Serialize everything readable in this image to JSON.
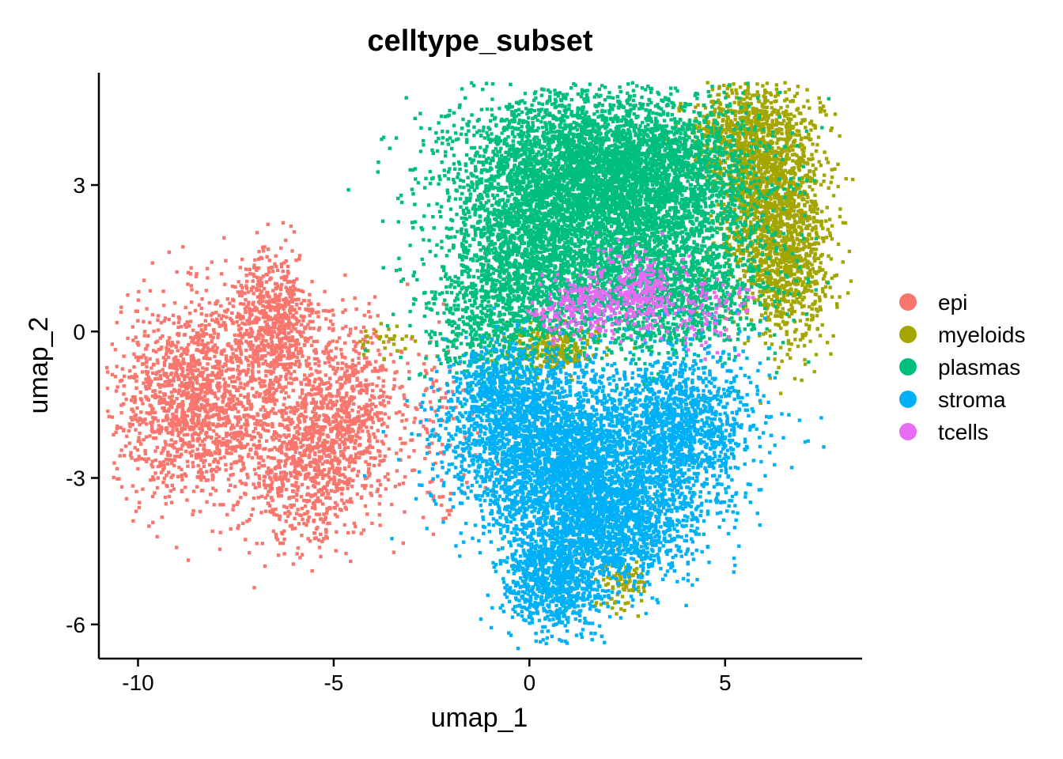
{
  "chart_data": {
    "type": "scatter",
    "title": "celltype_subset",
    "xlabel": "umap_1",
    "ylabel": "umap_2",
    "xlim": [
      -11,
      8.5
    ],
    "ylim": [
      -6.7,
      5.3
    ],
    "x_ticks": [
      -10,
      -5,
      0,
      5
    ],
    "y_ticks": [
      -6,
      -3,
      0,
      3
    ],
    "x_tick_labels": [
      "-10",
      "-5",
      "0",
      "5"
    ],
    "y_tick_labels": [
      "-6",
      "-3",
      "0",
      "3"
    ],
    "grid": false,
    "legend_position": "right",
    "series": [
      {
        "name": "epi",
        "color": "#F8766D",
        "clusters": [
          {
            "cx": -8.5,
            "cy": -1.4,
            "sx": 1.05,
            "sy": 1.0,
            "n": 1500
          },
          {
            "cx": -6.6,
            "cy": 0.1,
            "sx": 0.6,
            "sy": 0.75,
            "n": 700
          },
          {
            "cx": -5.7,
            "cy": -2.6,
            "sx": 0.8,
            "sy": 0.9,
            "n": 900
          },
          {
            "cx": -4.6,
            "cy": -1.4,
            "sx": 0.6,
            "sy": 0.8,
            "n": 500
          },
          {
            "cx": -2.6,
            "cy": -1.8,
            "sx": 0.7,
            "sy": 1.0,
            "n": 140
          }
        ]
      },
      {
        "name": "myeloids",
        "color": "#A3A500",
        "clusters": [
          {
            "cx": 6.1,
            "cy": 3.0,
            "sx": 0.7,
            "sy": 1.1,
            "n": 1400
          },
          {
            "cx": 6.6,
            "cy": 1.4,
            "sx": 0.55,
            "sy": 0.9,
            "n": 700
          },
          {
            "cx": 5.3,
            "cy": 4.0,
            "sx": 0.7,
            "sy": 0.5,
            "n": 400
          },
          {
            "cx": 0.5,
            "cy": -0.35,
            "sx": 0.6,
            "sy": 0.25,
            "n": 280
          },
          {
            "cx": 2.4,
            "cy": -5.2,
            "sx": 0.3,
            "sy": 0.25,
            "n": 90
          },
          {
            "cx": -3.7,
            "cy": -0.2,
            "sx": 0.4,
            "sy": 0.2,
            "n": 30
          }
        ]
      },
      {
        "name": "plasmas",
        "color": "#00BF7D",
        "clusters": [
          {
            "cx": 1.0,
            "cy": 3.2,
            "sx": 1.6,
            "sy": 0.85,
            "n": 3200
          },
          {
            "cx": 3.4,
            "cy": 3.0,
            "sx": 1.3,
            "sy": 0.9,
            "n": 2200
          },
          {
            "cx": 0.2,
            "cy": 1.3,
            "sx": 1.3,
            "sy": 0.8,
            "n": 1700
          },
          {
            "cx": 3.6,
            "cy": 0.8,
            "sx": 1.2,
            "sy": 0.7,
            "n": 1200
          },
          {
            "cx": -1.0,
            "cy": 0.0,
            "sx": 0.8,
            "sy": 0.6,
            "n": 400
          }
        ]
      },
      {
        "name": "stroma",
        "color": "#00B0F6",
        "clusters": [
          {
            "cx": 0.4,
            "cy": -2.3,
            "sx": 1.3,
            "sy": 0.8,
            "n": 2200
          },
          {
            "cx": 3.8,
            "cy": -2.0,
            "sx": 1.0,
            "sy": 0.8,
            "n": 1500
          },
          {
            "cx": 1.5,
            "cy": -3.6,
            "sx": 1.2,
            "sy": 0.7,
            "n": 1500
          },
          {
            "cx": 0.6,
            "cy": -5.1,
            "sx": 0.6,
            "sy": 0.5,
            "n": 900
          },
          {
            "cx": 2.5,
            "cy": -4.0,
            "sx": 0.9,
            "sy": 0.6,
            "n": 700
          },
          {
            "cx": -0.6,
            "cy": -1.2,
            "sx": 0.7,
            "sy": 0.5,
            "n": 500
          }
        ]
      },
      {
        "name": "tcells",
        "color": "#E76BF3",
        "clusters": [
          {
            "cx": 1.3,
            "cy": 0.5,
            "sx": 0.5,
            "sy": 0.3,
            "n": 220
          },
          {
            "cx": 2.8,
            "cy": 0.8,
            "sx": 0.5,
            "sy": 0.4,
            "n": 240
          },
          {
            "cx": 4.5,
            "cy": 0.4,
            "sx": 0.6,
            "sy": 0.4,
            "n": 100
          }
        ]
      }
    ]
  }
}
